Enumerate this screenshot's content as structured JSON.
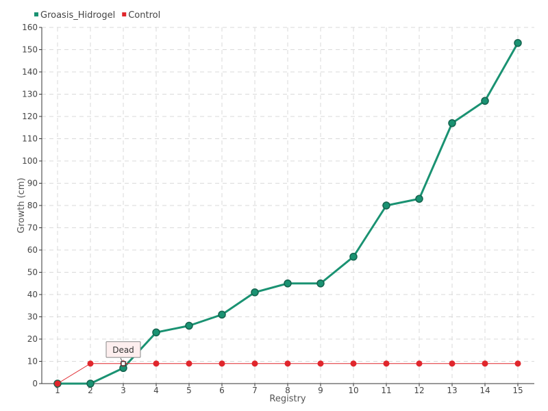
{
  "chart_data": {
    "type": "line",
    "xlabel": "Registry",
    "ylabel": "Growth (cm)",
    "categories": [
      "1",
      "2",
      "3",
      "4",
      "5",
      "6",
      "7",
      "8",
      "9",
      "10",
      "11",
      "12",
      "13",
      "14",
      "15"
    ],
    "ylim": [
      0,
      160
    ],
    "yticks": [
      0,
      10,
      20,
      30,
      40,
      50,
      60,
      70,
      80,
      90,
      100,
      110,
      120,
      130,
      140,
      150,
      160
    ],
    "grid": true,
    "legend_position": "top-left",
    "series": [
      {
        "name": "Groasis_Hidrogel",
        "color": "#1a9272",
        "values": [
          0,
          0,
          7,
          23,
          26,
          31,
          41,
          45,
          45,
          57,
          80,
          83,
          117,
          127,
          153
        ]
      },
      {
        "name": "Control",
        "color": "#e0262c",
        "values": [
          0,
          9,
          9,
          9,
          9,
          9,
          9,
          9,
          9,
          9,
          9,
          9,
          9,
          9,
          9
        ]
      }
    ],
    "annotations": [
      {
        "text": "Dead",
        "series": "Control",
        "category": "3",
        "value": 9
      }
    ]
  }
}
